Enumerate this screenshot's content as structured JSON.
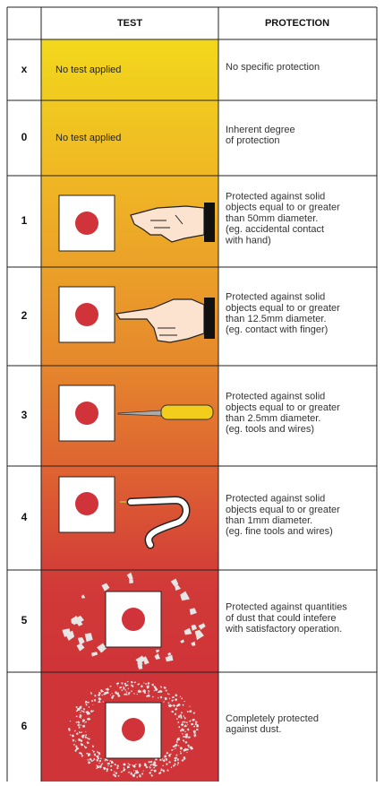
{
  "header": {
    "test": "TEST",
    "protection": "PROTECTION"
  },
  "rows": [
    {
      "code": "x",
      "test": "No test applied",
      "protection": [
        "No specific protection"
      ]
    },
    {
      "code": "0",
      "test": "No test applied",
      "protection": [
        "Inherent degree",
        "of protection"
      ]
    },
    {
      "code": "1",
      "protection": [
        "Protected against solid",
        "objects equal to or greater",
        "than 50mm diameter.",
        "(eg. accidental contact",
        "with hand)"
      ]
    },
    {
      "code": "2",
      "protection": [
        "Protected against solid",
        "objects equal to or greater",
        "than 12.5mm diameter.",
        "(eg. contact with finger)"
      ]
    },
    {
      "code": "3",
      "protection": [
        "Protected against solid",
        "objects equal to or greater",
        "than 2.5mm diameter.",
        "(eg. tools and wires)"
      ]
    },
    {
      "code": "4",
      "protection": [
        "Protected against solid",
        "objects equal to or greater",
        "than 1mm diameter.",
        "(eg. fine tools and wires)"
      ]
    },
    {
      "code": "5",
      "protection": [
        "Protected against quantities",
        "of dust that could intefere",
        "with satisfactory operation."
      ]
    },
    {
      "code": "6",
      "protection": [
        "Completely protected",
        "against dust."
      ]
    }
  ]
}
